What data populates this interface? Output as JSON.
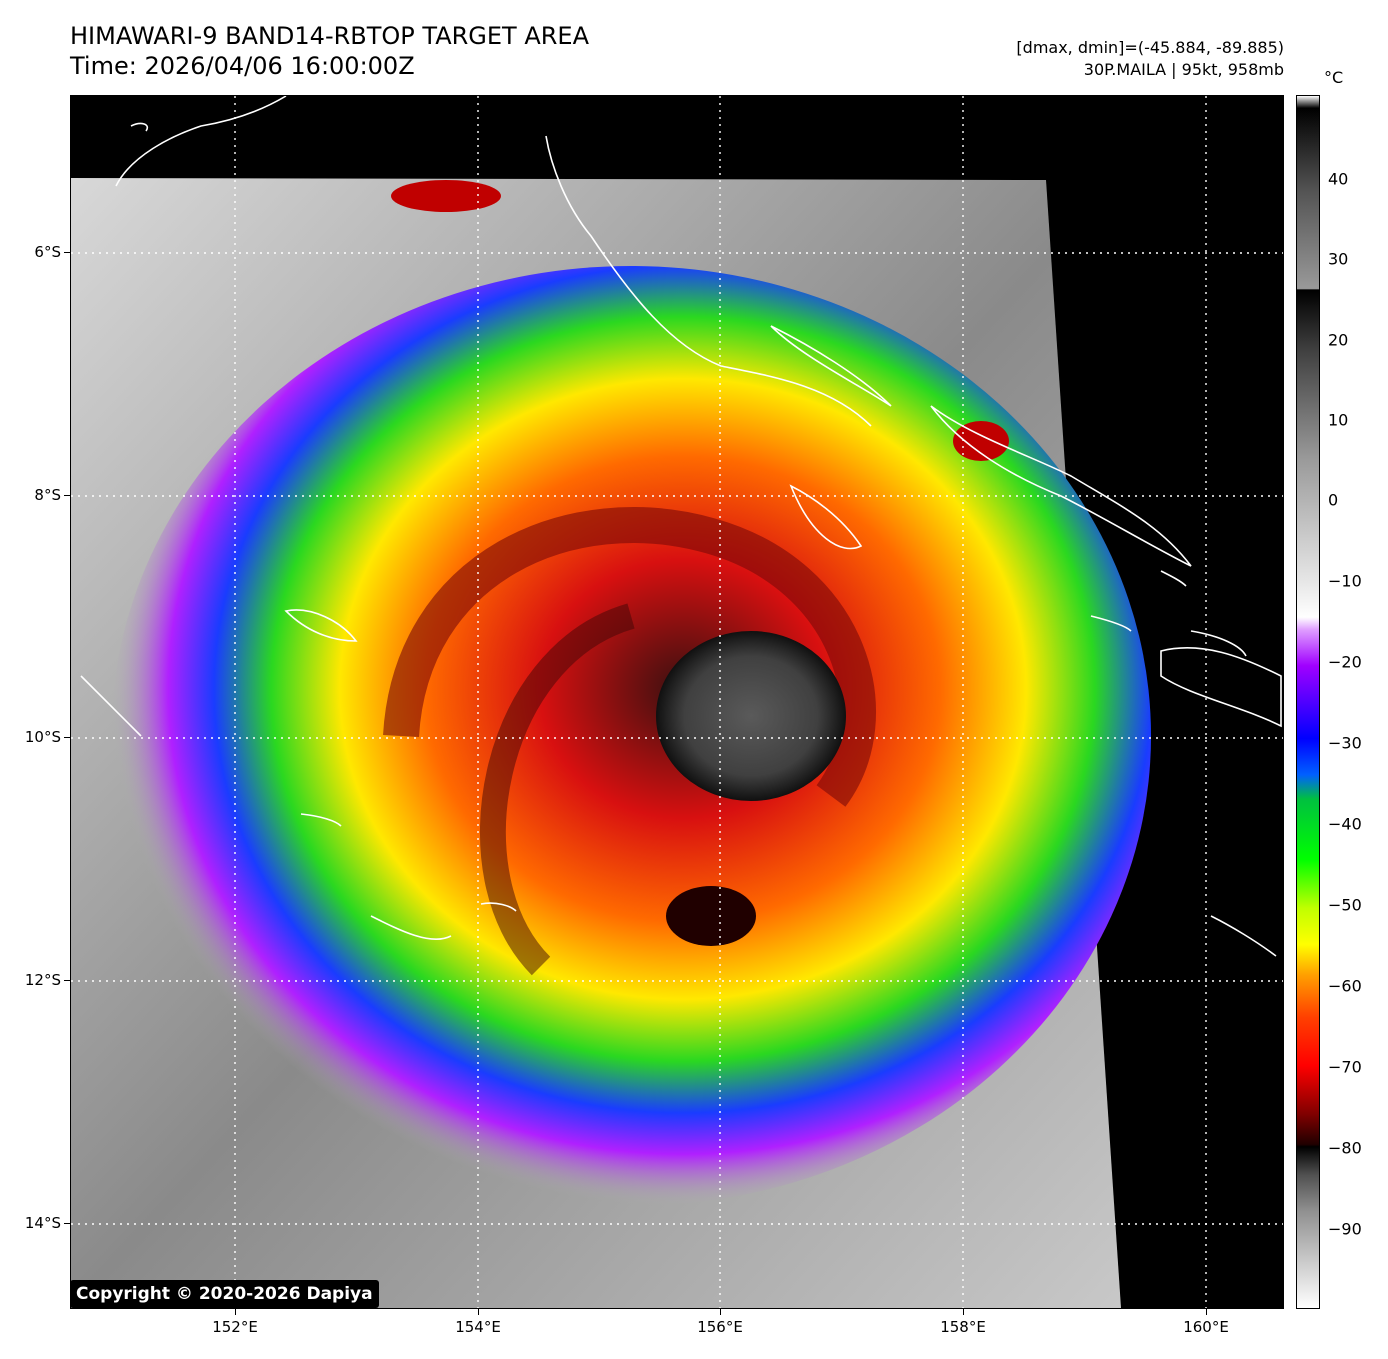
{
  "header": {
    "title_line1": "HIMAWARI-9 BAND14-RBTOP TARGET AREA",
    "title_line2": "Time: 2026/04/06 16:00:00Z",
    "info_line1": "[dmax, dmin]=(-45.884, -89.885)",
    "info_line2": "30P.MAILA | 95kt, 958mb"
  },
  "map": {
    "lat_labels": [
      "6°S",
      "8°S",
      "10°S",
      "12°S",
      "14°S"
    ],
    "lon_labels": [
      "152°E",
      "154°E",
      "156°E",
      "158°E",
      "160°E"
    ],
    "lon_range": [
      150.65,
      160.65
    ],
    "lat_range": [
      -14.7,
      -4.7
    ],
    "storm_center": {
      "lon": 156.15,
      "lat": -10.0
    },
    "copyright": "Copyright © 2020-2026 Dapiya"
  },
  "colorbar": {
    "unit": "°C",
    "labels": [
      "40",
      "30",
      "20",
      "10",
      "0",
      "−10",
      "−20",
      "−30",
      "−40",
      "−50",
      "−60",
      "−70",
      "−80",
      "−90"
    ],
    "range": [
      50,
      -100
    ]
  }
}
